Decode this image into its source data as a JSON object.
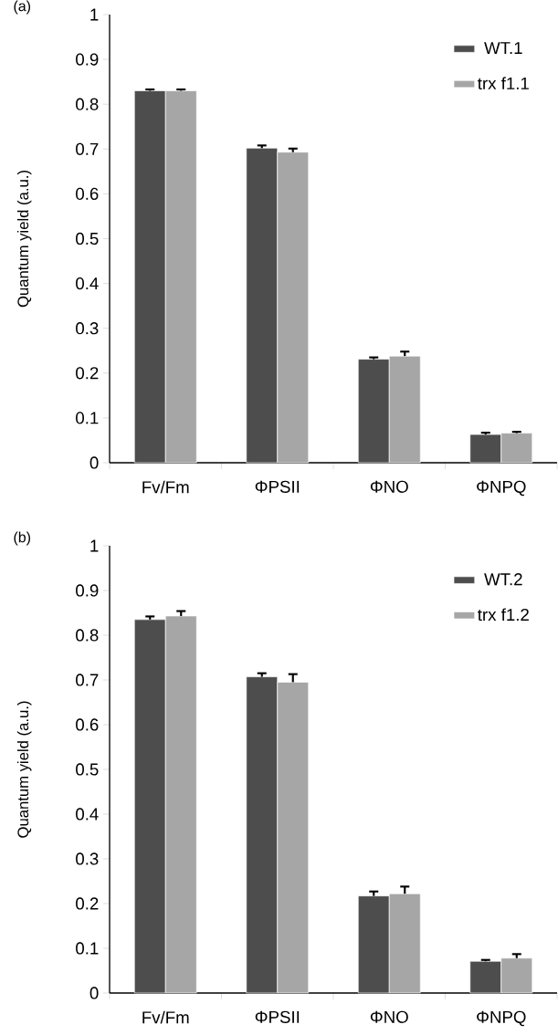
{
  "chart_data": [
    {
      "type": "bar",
      "title": "(a)",
      "ylabel": "Quantum yield (a.u.)",
      "categories": [
        "Fv/Fm",
        "ΦPSII",
        "ΦNO",
        "ΦNPQ"
      ],
      "series": [
        {
          "name": "WT.1",
          "color": "#4d4d4d",
          "values": [
            0.83,
            0.702,
            0.231,
            0.063
          ],
          "errors": [
            [
              0.83,
              0.833
            ],
            [
              0.702,
              0.708
            ],
            [
              0.231,
              0.235
            ],
            [
              0.063,
              0.067
            ]
          ]
        },
        {
          "name": "trx f1.1",
          "color": "#a6a6a6",
          "values": [
            0.83,
            0.693,
            0.238,
            0.066
          ],
          "errors": [
            [
              0.83,
              0.833
            ],
            [
              0.693,
              0.701
            ],
            [
              0.238,
              0.248
            ],
            [
              0.066,
              0.069
            ]
          ]
        }
      ],
      "ylim": [
        0,
        1
      ],
      "yticks": [
        0,
        0.1,
        0.2,
        0.3,
        0.4,
        0.5,
        0.6,
        0.7,
        0.8,
        0.9,
        1
      ],
      "legend": "top right"
    },
    {
      "type": "bar",
      "title": "(b)",
      "ylabel": "Quantum yield (a.u.)",
      "categories": [
        "Fv/Fm",
        "ΦPSII",
        "ΦNO",
        "ΦNPQ"
      ],
      "series": [
        {
          "name": "WT.2",
          "color": "#4d4d4d",
          "values": [
            0.835,
            0.707,
            0.217,
            0.071
          ],
          "errors": [
            [
              0.835,
              0.842
            ],
            [
              0.707,
              0.715
            ],
            [
              0.217,
              0.227
            ],
            [
              0.071,
              0.074
            ]
          ]
        },
        {
          "name": "trx f1.2",
          "color": "#a6a6a6",
          "values": [
            0.843,
            0.695,
            0.222,
            0.078
          ],
          "errors": [
            [
              0.843,
              0.854
            ],
            [
              0.695,
              0.713
            ],
            [
              0.222,
              0.238
            ],
            [
              0.078,
              0.087
            ]
          ]
        }
      ],
      "ylim": [
        0,
        1
      ],
      "yticks": [
        0,
        0.1,
        0.2,
        0.3,
        0.4,
        0.5,
        0.6,
        0.7,
        0.8,
        0.9,
        1
      ],
      "legend": "top right"
    }
  ]
}
